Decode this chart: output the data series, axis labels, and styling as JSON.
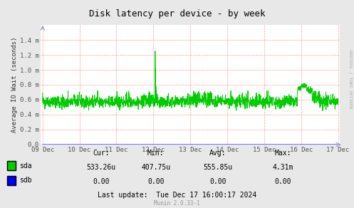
{
  "title": "Disk latency per device - by week",
  "ylabel": "Average IO Wait (seconds)",
  "bg_color": "#E8E8E8",
  "plot_bg_color": "#FFFFFF",
  "grid_color": "#FF9999",
  "x_tick_positions": [
    0,
    1,
    2,
    3,
    4,
    5,
    6,
    7,
    8
  ],
  "x_tick_labels": [
    "09 Dec",
    "10 Dec",
    "11 Dec",
    "12 Dec",
    "13 Dec",
    "14 Dec",
    "15 Dec",
    "16 Dec",
    "17 Dec"
  ],
  "y_ticks": [
    0.0,
    0.2,
    0.4,
    0.6,
    0.8,
    1.0,
    1.2,
    1.4
  ],
  "y_tick_labels": [
    "0.0",
    "0.2 m",
    "0.4 m",
    "0.6 m",
    "0.8 m",
    "1.0 m",
    "1.2 m",
    "1.4 m"
  ],
  "sda_color": "#00CC00",
  "sdb_color": "#0000FF",
  "arrow_color": "#9999BB",
  "title_color": "#000000",
  "sidebar_text": "RRDTOOL / TOBI OETIKER",
  "stats_sda": [
    "533.26u",
    "407.75u",
    "555.85u",
    "4.31m"
  ],
  "stats_sdb": [
    "0.00",
    "0.00",
    "0.00",
    "0.00"
  ],
  "last_update": "Last update:  Tue Dec 17 16:00:17 2024",
  "munin_version": "Munin 2.0.33-1",
  "munin_color": "#999999"
}
